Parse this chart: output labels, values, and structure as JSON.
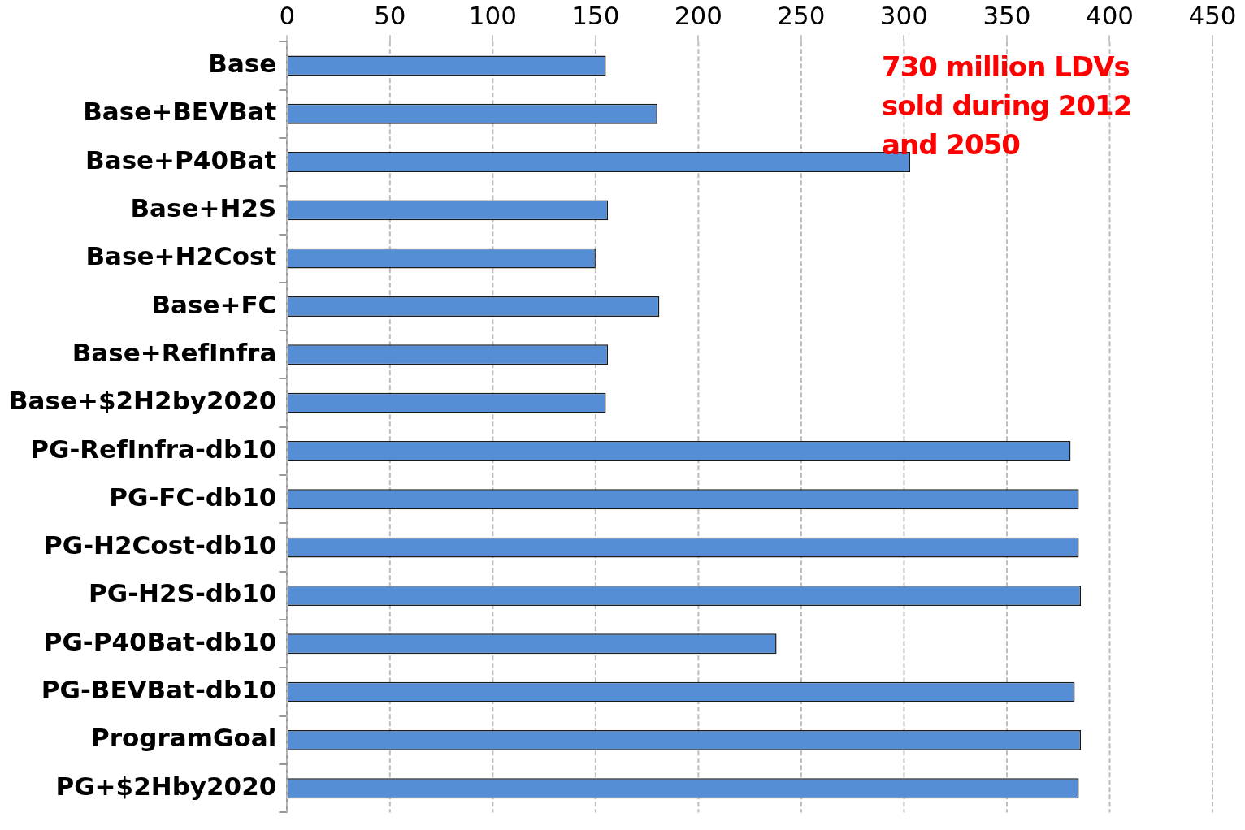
{
  "chart_data": {
    "type": "bar",
    "orientation": "horizontal",
    "categories": [
      "Base",
      "Base+BEVBat",
      "Base+P40Bat",
      "Base+H2S",
      "Base+H2Cost",
      "Base+FC",
      "Base+RefInfra",
      "Base+$2H2by2020",
      "PG-RefInfra-db10",
      "PG-FC-db10",
      "PG-H2Cost-db10",
      "PG-H2S-db10",
      "PG-P40Bat-db10",
      "PG-BEVBat-db10",
      "ProgramGoal",
      "PG+$2Hby2020"
    ],
    "values": [
      155,
      180,
      303,
      156,
      150,
      181,
      156,
      155,
      381,
      385,
      385,
      386,
      238,
      383,
      386,
      385
    ],
    "color": "#558ed5",
    "xlim": [
      0,
      450
    ],
    "xticks": [
      0,
      50,
      100,
      150,
      200,
      250,
      300,
      350,
      400,
      450
    ],
    "grid": "x",
    "annotations": [
      "730 million LDVs sold during 2012 and 2050"
    ]
  }
}
